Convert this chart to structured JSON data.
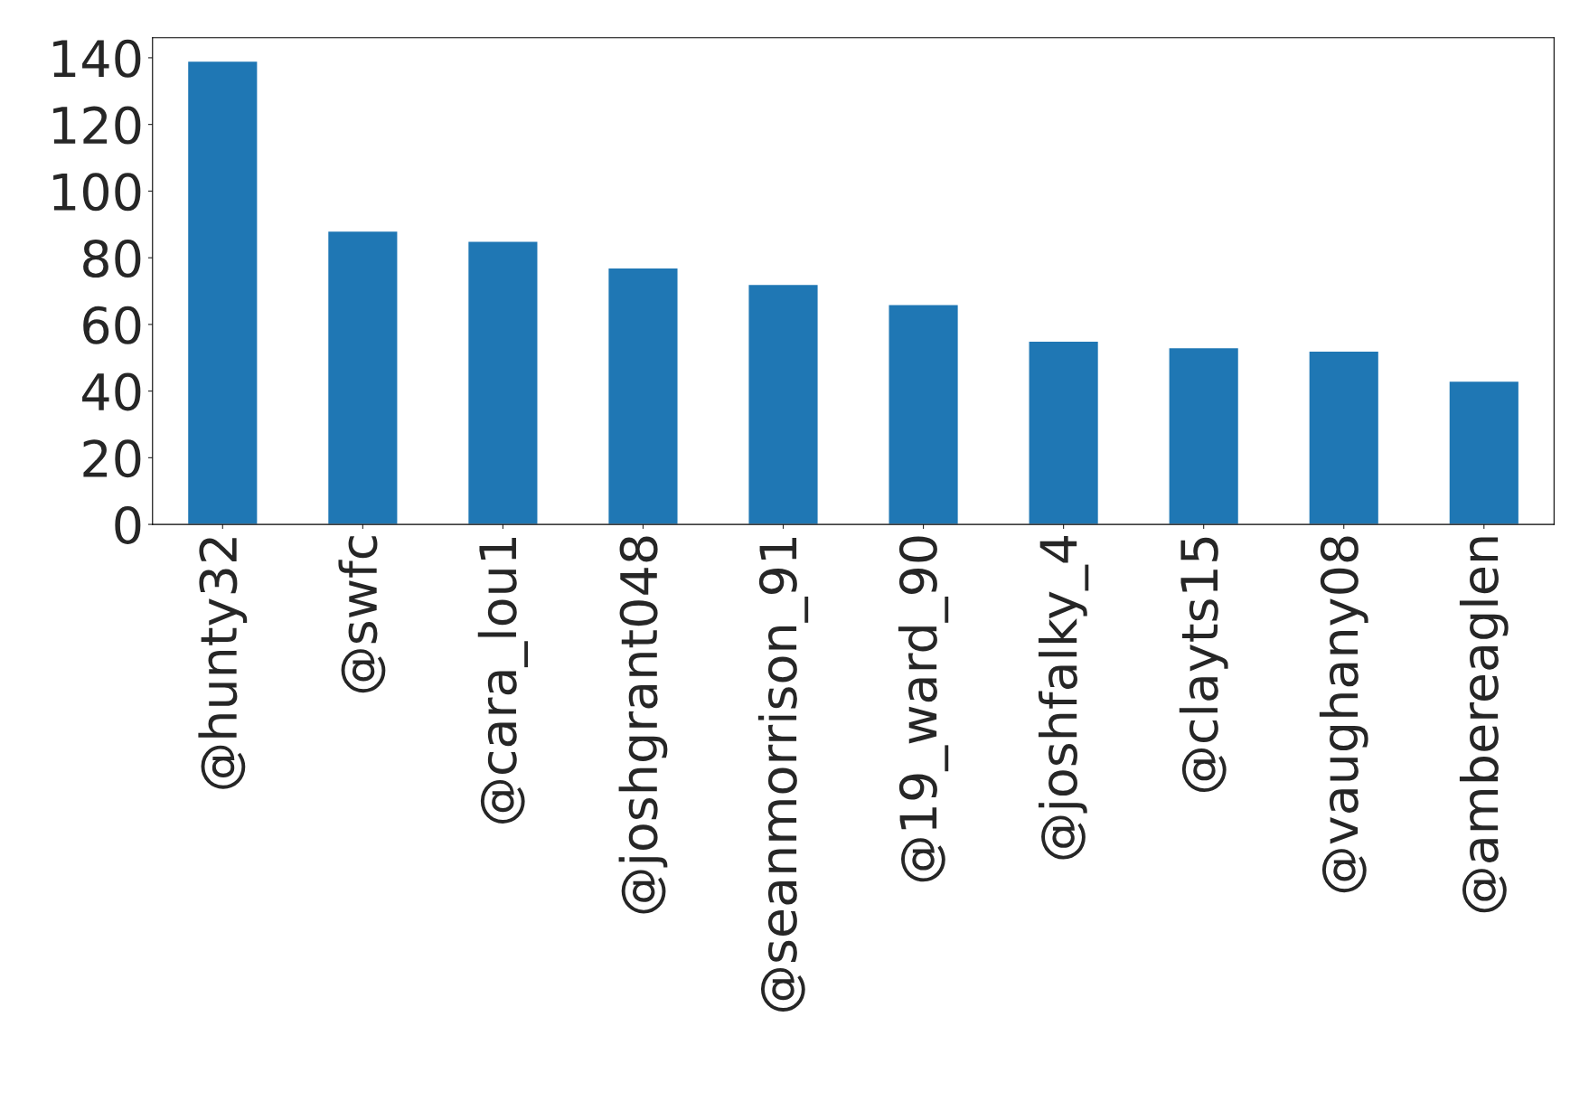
{
  "chart_data": {
    "type": "bar",
    "categories": [
      "@hunty32",
      "@swfc",
      "@cara_lou1",
      "@joshgrant048",
      "@seanmorrison_91",
      "@19_ward_90",
      "@joshfalky_4",
      "@clayts15",
      "@vaughany08",
      "@ambereaglen"
    ],
    "values": [
      139,
      88,
      85,
      77,
      72,
      66,
      55,
      53,
      52,
      43
    ],
    "color": "#1f77b4",
    "ylim": [
      0,
      146
    ],
    "yticks": [
      0,
      20,
      40,
      60,
      80,
      100,
      120,
      140
    ],
    "grid": false
  }
}
